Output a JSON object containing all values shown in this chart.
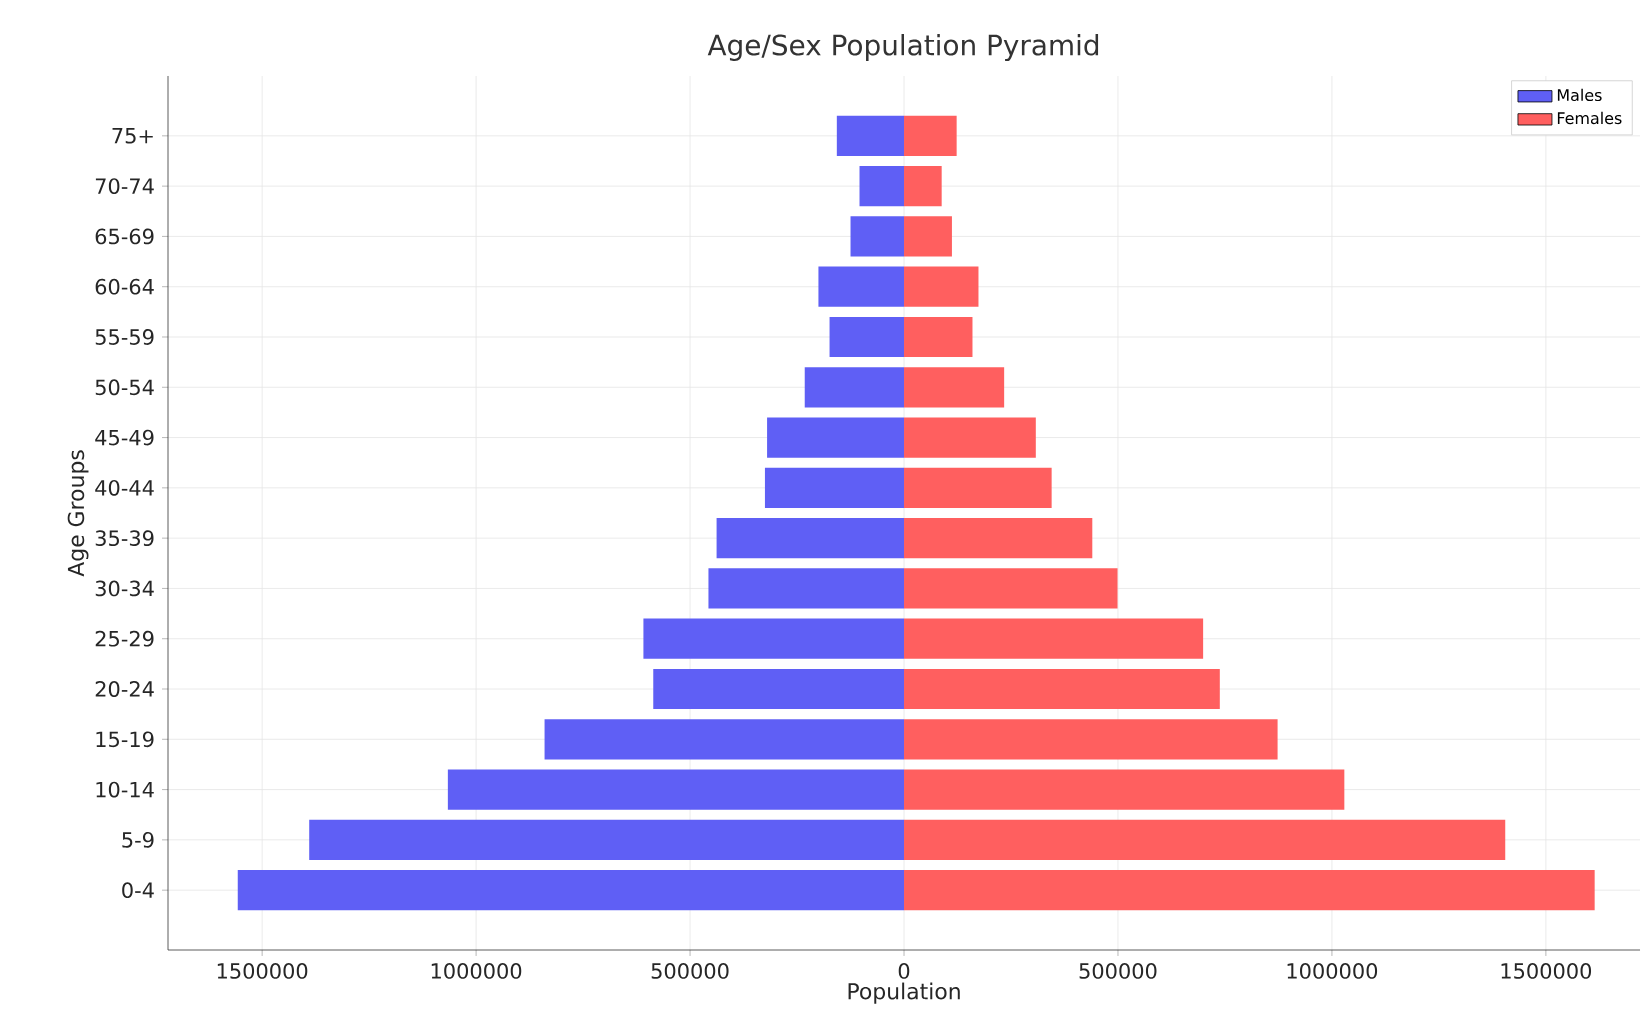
{
  "chart_data": {
    "type": "bar",
    "orientation": "horizontal",
    "title": "Age/Sex Population Pyramid",
    "xlabel": "Population",
    "ylabel": "Age Groups",
    "categories": [
      "75+",
      "70-74",
      "65-69",
      "60-64",
      "55-59",
      "50-54",
      "45-49",
      "40-44",
      "35-39",
      "30-34",
      "25-29",
      "20-24",
      "15-19",
      "10-14",
      "5-9",
      "0-4"
    ],
    "series": [
      {
        "name": "Males",
        "color": "#5f5ff5",
        "values": [
          -157000,
          -104000,
          -125000,
          -200000,
          -174000,
          -232000,
          -320000,
          -325000,
          -438000,
          -457000,
          -609000,
          -586000,
          -840000,
          -1066000,
          -1390000,
          -1557000
        ]
      },
      {
        "name": "Females",
        "color": "#ff5f5f",
        "values": [
          123000,
          88000,
          112000,
          174000,
          160000,
          234000,
          308000,
          345000,
          440000,
          499000,
          699000,
          738000,
          873000,
          1029000,
          1405000,
          1614000
        ]
      }
    ],
    "xlim": [
      -1720000,
      1720000
    ],
    "xticks": [
      {
        "value": -1500000,
        "label": "1500000"
      },
      {
        "value": -1000000,
        "label": "1000000"
      },
      {
        "value": -500000,
        "label": "500000"
      },
      0,
      500000,
      1000000,
      1500000
    ],
    "grid": true,
    "legend": "top right",
    "stacked": true
  }
}
